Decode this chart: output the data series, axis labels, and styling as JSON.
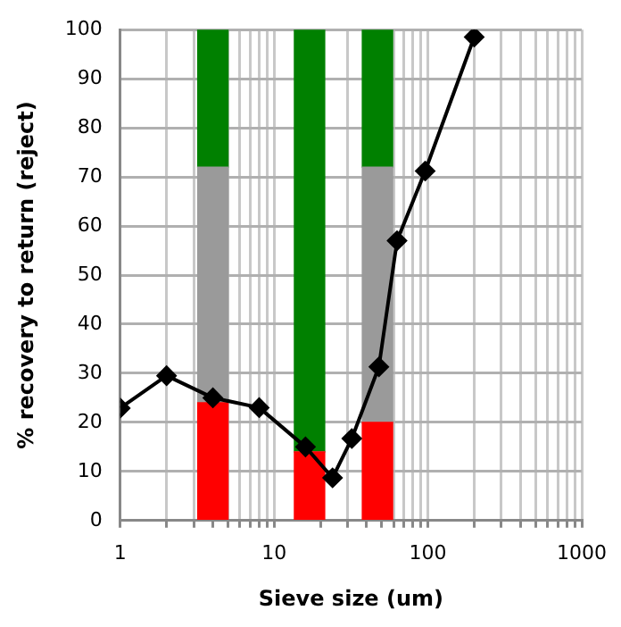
{
  "chart_data": {
    "type": "line",
    "xlabel": "Sieve size (um)",
    "ylabel": "% recovery to return (reject)",
    "log": "x",
    "xlim": [
      1,
      1000
    ],
    "ylim": [
      0,
      100
    ],
    "xticks": [
      1,
      {
        "value": 2,
        "label": null
      },
      {
        "value": 3,
        "label": null
      },
      {
        "value": 4,
        "label": null
      },
      {
        "value": 5,
        "label": null
      },
      {
        "value": 6,
        "label": null
      },
      {
        "value": 7,
        "label": null
      },
      {
        "value": 8,
        "label": null
      },
      {
        "value": 9,
        "label": null
      },
      10,
      {
        "value": 20,
        "label": null
      },
      {
        "value": 30,
        "label": null
      },
      {
        "value": 40,
        "label": null
      },
      {
        "value": 50,
        "label": null
      },
      {
        "value": 60,
        "label": null
      },
      {
        "value": 70,
        "label": null
      },
      {
        "value": 80,
        "label": null
      },
      {
        "value": 90,
        "label": null
      },
      100,
      {
        "value": 200,
        "label": null
      },
      {
        "value": 300,
        "label": null
      },
      {
        "value": 400,
        "label": null
      },
      {
        "value": 500,
        "label": null
      },
      {
        "value": 600,
        "label": null
      },
      {
        "value": 700,
        "label": null
      },
      {
        "value": 800,
        "label": null
      },
      {
        "value": 900,
        "label": null
      },
      1000
    ],
    "yticks": [
      0,
      10,
      20,
      30,
      40,
      50,
      60,
      70,
      80,
      90,
      100
    ],
    "grid": true,
    "legend": false,
    "stacked": true,
    "series": [
      {
        "type": "bar",
        "color": "#ff0000",
        "x": [
          4,
          17,
          47
        ],
        "values": [
          24,
          14,
          20
        ]
      },
      {
        "type": "bar",
        "color": "#9a9a9a",
        "x": [
          4,
          17,
          47
        ],
        "values": [
          48,
          0,
          52
        ]
      },
      {
        "type": "bar",
        "color": "#008000",
        "x": [
          4,
          17,
          47
        ],
        "values": [
          28,
          86,
          28
        ]
      },
      {
        "color": "#000000",
        "marker": "diamond",
        "line_style": "solid",
        "x": [
          1,
          2,
          4,
          8,
          16,
          24,
          32,
          48,
          63,
          96,
          200
        ],
        "values": [
          22.9,
          29.5,
          25,
          23,
          15,
          8.7,
          16.7,
          31.3,
          57,
          71.2,
          98.5
        ]
      }
    ]
  }
}
